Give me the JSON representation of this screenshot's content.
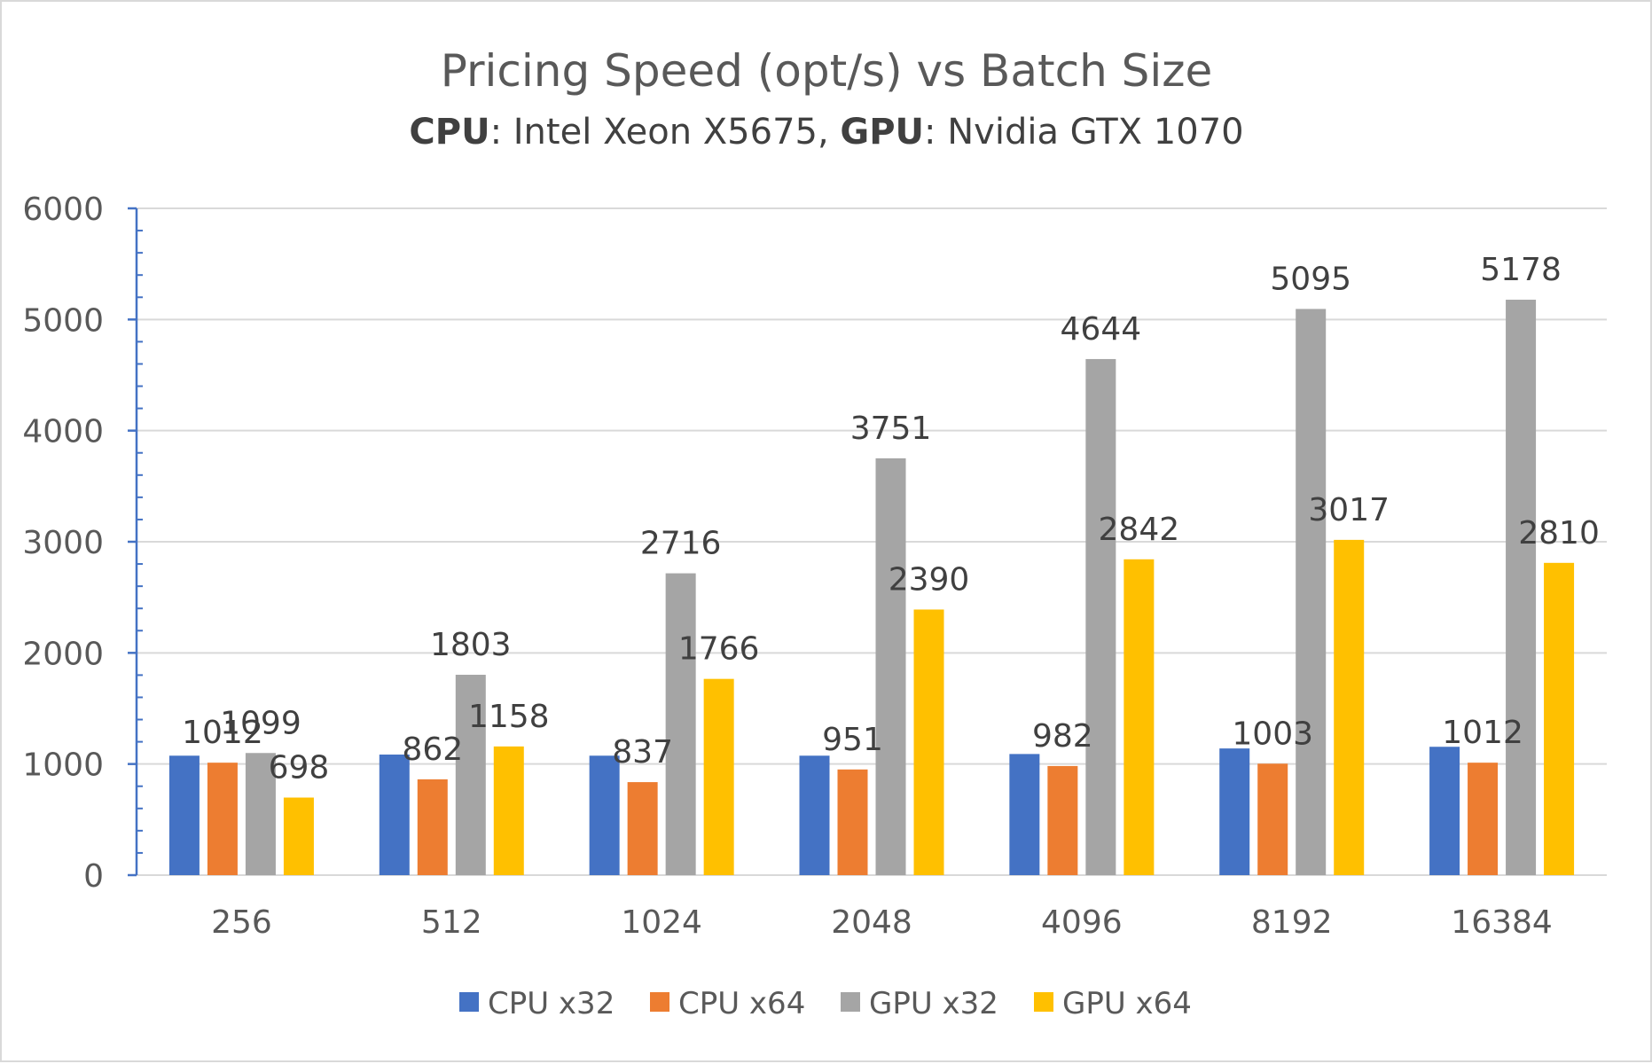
{
  "chart_data": {
    "type": "bar",
    "title": "Pricing Speed (opt/s) vs Batch Size",
    "subtitle": {
      "part1_bold": "CPU",
      "part1_rest": ": Intel Xeon X5675, ",
      "part2_bold": "GPU",
      "part2_rest": ": Nvidia GTX 1070"
    },
    "xlabel": "",
    "ylabel": "",
    "ylim": [
      0,
      6000
    ],
    "yticks": [
      0,
      1000,
      2000,
      3000,
      4000,
      5000,
      6000
    ],
    "ytick_labels": [
      "0",
      "1000",
      "2000",
      "3000",
      "4000",
      "5000",
      "6000"
    ],
    "categories": [
      "256",
      "512",
      "1024",
      "2048",
      "4096",
      "8192",
      "16384"
    ],
    "series": [
      {
        "name": "CPU x32",
        "color": "#4472C4",
        "values": [
          1075,
          1085,
          1075,
          1075,
          1090,
          1140,
          1155
        ]
      },
      {
        "name": "CPU x64",
        "color": "#ED7D31",
        "values": [
          1012,
          862,
          837,
          951,
          982,
          1003,
          1012
        ],
        "labels": [
          "1012",
          "862",
          "837",
          "951",
          "982",
          "1003",
          "1012"
        ]
      },
      {
        "name": "GPU x32",
        "color": "#A5A5A5",
        "values": [
          1099,
          1803,
          2716,
          3751,
          4644,
          5095,
          5178
        ],
        "labels": [
          "1099",
          "1803",
          "2716",
          "3751",
          "4644",
          "5095",
          "5178"
        ]
      },
      {
        "name": "GPU x64",
        "color": "#FFC000",
        "values": [
          698,
          1158,
          1766,
          2390,
          2842,
          3017,
          2810
        ],
        "labels": [
          "698",
          "1158",
          "1766",
          "2390",
          "2842",
          "3017",
          "2810"
        ]
      }
    ],
    "grid": true,
    "legend": "bottom",
    "colors": {
      "gridline": "#d9d9d9",
      "axis": "#4472C4",
      "frame": "#d9d9d9"
    }
  }
}
